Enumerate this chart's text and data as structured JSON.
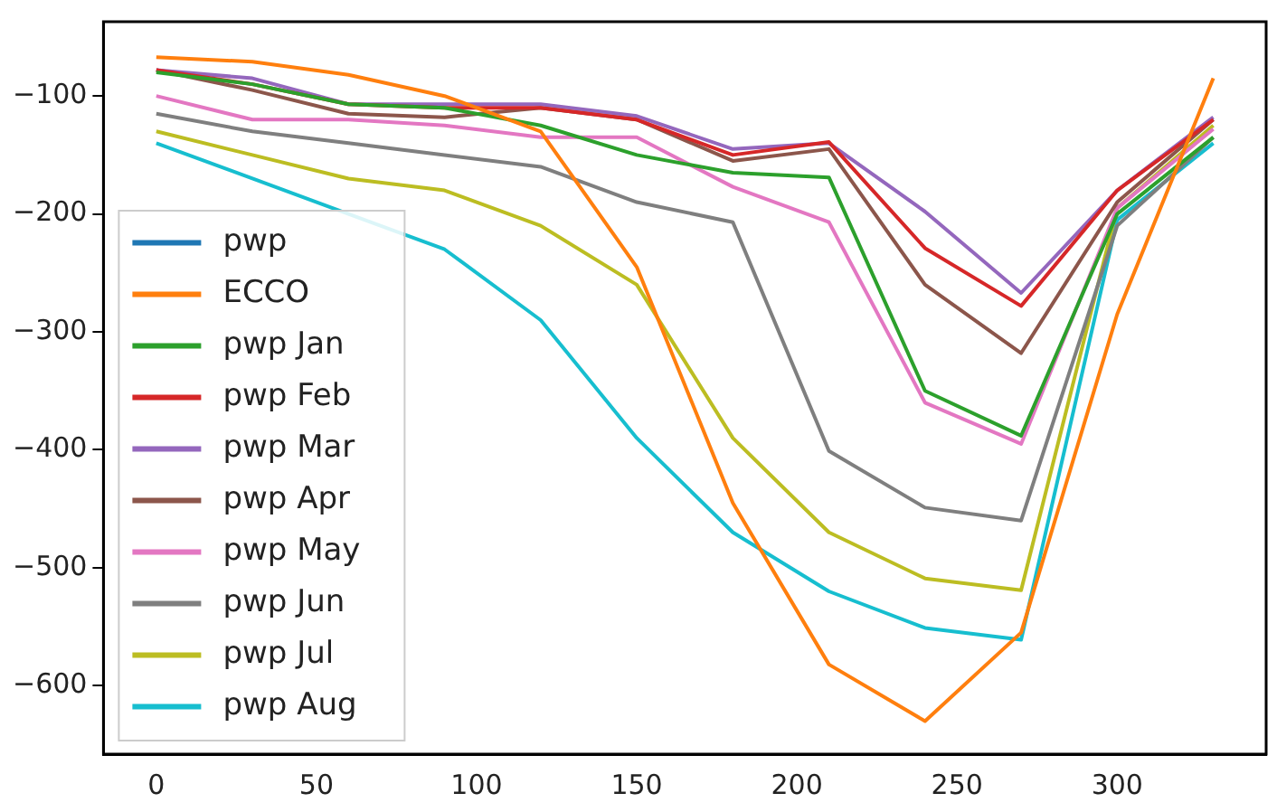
{
  "chart_data": {
    "type": "line",
    "x": [
      0,
      30,
      60,
      90,
      120,
      150,
      180,
      210,
      240,
      270,
      300,
      330
    ],
    "xlim": [
      -16.5,
      346.5
    ],
    "xticks": [
      0,
      50,
      100,
      150,
      200,
      250,
      300
    ],
    "ylim": [
      -658,
      -37
    ],
    "yticks": [
      -100,
      -200,
      -300,
      -400,
      -500,
      -600
    ],
    "grid": false,
    "legend": "lower left",
    "marker": "none",
    "line_style": "solid",
    "series": [
      {
        "name": "pwp",
        "color": "#1f77b4",
        "values": [
          null,
          null,
          null,
          null,
          null,
          null,
          null,
          null,
          null,
          null,
          null,
          null
        ]
      },
      {
        "name": "ECCO",
        "color": "#ff7f0e",
        "values": [
          -67,
          -71,
          -82,
          -100,
          -130,
          -245,
          -445,
          -582,
          -630,
          -555,
          -285,
          -85
        ]
      },
      {
        "name": "pwp Jan",
        "color": "#2ca02c",
        "values": [
          -80,
          -90,
          -107,
          -110,
          -125,
          -150,
          -165,
          -169,
          -350,
          -388,
          -200,
          -135
        ]
      },
      {
        "name": "pwp Feb",
        "color": "#d62728",
        "values": [
          -78,
          -90,
          -107,
          -110,
          -110,
          -120,
          -150,
          -139,
          -229,
          -278,
          -180,
          -120
        ]
      },
      {
        "name": "pwp Mar",
        "color": "#9467bd",
        "values": [
          -78,
          -85,
          -107,
          -107,
          -107,
          -117,
          -145,
          -140,
          -198,
          -267,
          -180,
          -118
        ]
      },
      {
        "name": "pwp Apr",
        "color": "#8c564b",
        "values": [
          -78,
          -95,
          -115,
          -118,
          -110,
          -120,
          -155,
          -145,
          -260,
          -318,
          -190,
          -120
        ]
      },
      {
        "name": "pwp May",
        "color": "#e377c2",
        "values": [
          -100,
          -120,
          -120,
          -125,
          -135,
          -135,
          -177,
          -207,
          -360,
          -395,
          -195,
          -128
        ]
      },
      {
        "name": "pwp Jun",
        "color": "#7f7f7f",
        "values": [
          -115,
          -130,
          -140,
          -150,
          -160,
          -190,
          -207,
          -401,
          -449,
          -460,
          -210,
          -135
        ]
      },
      {
        "name": "pwp Jul",
        "color": "#bcbd22",
        "values": [
          -130,
          -150,
          -170,
          -180,
          -210,
          -260,
          -390,
          -470,
          -509,
          -519,
          -195,
          -125
        ]
      },
      {
        "name": "pwp Aug",
        "color": "#17becf",
        "values": [
          -140,
          -170,
          -200,
          -230,
          -290,
          -390,
          -470,
          -520,
          -551,
          -561,
          -205,
          -140
        ]
      }
    ]
  }
}
